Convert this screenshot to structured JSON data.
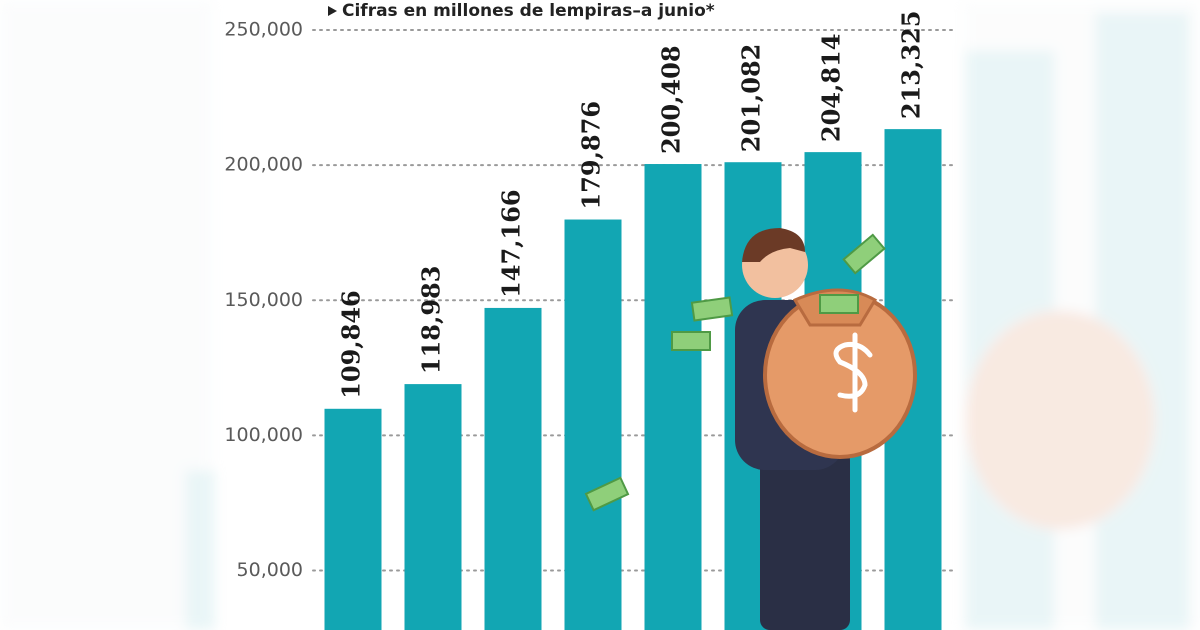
{
  "chart_data": {
    "type": "bar",
    "subtitle": "Cifras en millones de lempiras–a junio*",
    "categories": [
      null,
      null,
      null,
      null,
      null,
      null,
      null,
      null
    ],
    "values": [
      109846,
      118983,
      147166,
      179876,
      200408,
      201082,
      204814,
      213325
    ],
    "value_labels": [
      "109,846",
      "118,983",
      "147,166",
      "179,876",
      "200,408",
      "201,082",
      "204,814",
      "213,325"
    ],
    "color": "#12a6b3",
    "ylim": [
      28000,
      250000
    ],
    "yticks": [
      {
        "value": 50000,
        "label": "50,000"
      },
      {
        "value": 100000,
        "label": "100,000"
      },
      {
        "value": 150000,
        "label": "150,000"
      },
      {
        "value": 200000,
        "label": "200,000"
      },
      {
        "value": 250000,
        "label": "250,000"
      }
    ],
    "grid": true
  }
}
